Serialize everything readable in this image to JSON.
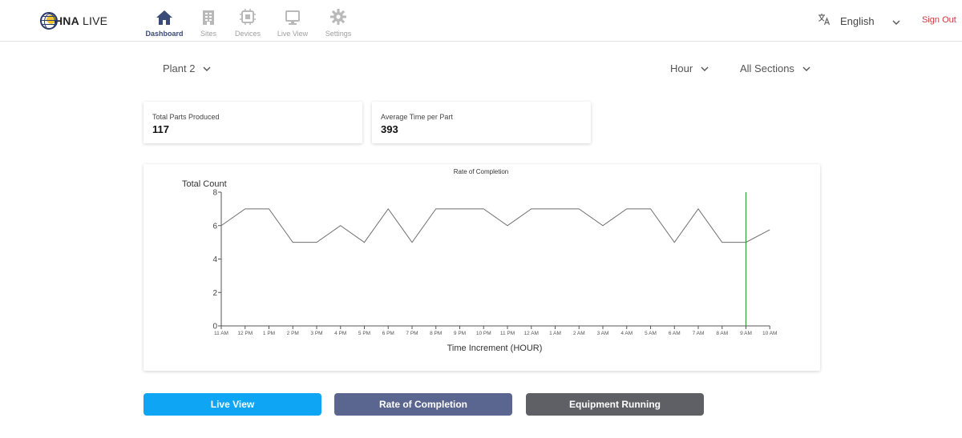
{
  "header": {
    "logo_bold": "HNA",
    "logo_rest": " LIVE",
    "nav": [
      {
        "label": "Dashboard",
        "icon": "home-icon",
        "active": true
      },
      {
        "label": "Sites",
        "icon": "building-icon",
        "active": false
      },
      {
        "label": "Devices",
        "icon": "chip-icon",
        "active": false
      },
      {
        "label": "Live View",
        "icon": "monitor-icon",
        "active": false
      },
      {
        "label": "Settings",
        "icon": "gear-icon",
        "active": false
      }
    ],
    "language": "English",
    "language_icon": "translate-icon",
    "sign_out": "Sign Out"
  },
  "filters": {
    "plant": "Plant 2",
    "interval": "Hour",
    "section": "All Sections"
  },
  "kpis": [
    {
      "label": "Total Parts Produced",
      "value": "117"
    },
    {
      "label": "Average Time per Part",
      "value": "393"
    }
  ],
  "chart_data": {
    "type": "line",
    "title": "Rate of Completion",
    "ylabel": "Total Count",
    "xlabel": "Time Increment (HOUR)",
    "ylim": [
      0,
      8
    ],
    "yticks": [
      "0",
      "2",
      "4",
      "6",
      "8"
    ],
    "categories": [
      "11 AM",
      "12 PM",
      "1 PM",
      "2 PM",
      "3 PM",
      "4 PM",
      "5 PM",
      "6 PM",
      "7 PM",
      "8 PM",
      "9 PM",
      "10 PM",
      "11 PM",
      "12 AM",
      "1 AM",
      "2 AM",
      "3 AM",
      "4 AM",
      "5 AM",
      "6 AM",
      "7 AM",
      "8 AM",
      "9 AM",
      "10 AM"
    ],
    "values": [
      6,
      7,
      7,
      5,
      5,
      6,
      5,
      7,
      5,
      7,
      7,
      7,
      6,
      7,
      7,
      7,
      6,
      7,
      7,
      5,
      7,
      5,
      5,
      5.75
    ],
    "marker_category": "9 AM",
    "marker_color": "#2e9d3a",
    "line_color": "#6e6e6e"
  },
  "buttons": [
    {
      "label": "Live View",
      "color": "#0ea5f5"
    },
    {
      "label": "Rate of Completion",
      "color": "#5b6690"
    },
    {
      "label": "Equipment Running",
      "color": "#5f6066"
    }
  ]
}
